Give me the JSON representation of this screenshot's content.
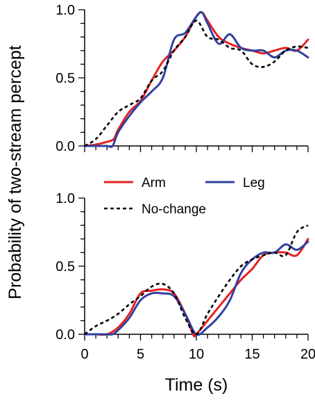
{
  "chart_data": {
    "type": "line",
    "ylabel": "Probability of two-stream percept",
    "xlabel": "Time (s)",
    "legend": {
      "placement": "between-panels",
      "entries": [
        {
          "name": "Arm",
          "color": "#e62020",
          "style": "solid"
        },
        {
          "name": "Leg",
          "color": "#3040a0",
          "style": "solid"
        },
        {
          "name": "No-change",
          "color": "#000000",
          "style": "dashed"
        }
      ]
    },
    "xlim": [
      0,
      20
    ],
    "x_ticks": [
      "0",
      "5",
      "10",
      "15",
      "20"
    ],
    "panels": [
      {
        "id": "top",
        "ylim": [
          0,
          1
        ],
        "y_ticks": [
          "0.0",
          "0.5",
          "1.0"
        ],
        "series": [
          {
            "name": "Arm",
            "color": "#e62020",
            "dashed": false,
            "points": [
              [
                0,
                0
              ],
              [
                1,
                0.01
              ],
              [
                2,
                0.03
              ],
              [
                2.6,
                0.05
              ],
              [
                3,
                0.12
              ],
              [
                4,
                0.25
              ],
              [
                5,
                0.33
              ],
              [
                6,
                0.48
              ],
              [
                7,
                0.62
              ],
              [
                8,
                0.7
              ],
              [
                9,
                0.8
              ],
              [
                10,
                0.95
              ],
              [
                10.5,
                0.98
              ],
              [
                11,
                0.92
              ],
              [
                12,
                0.8
              ],
              [
                13,
                0.75
              ],
              [
                14,
                0.72
              ],
              [
                15,
                0.7
              ],
              [
                16,
                0.68
              ],
              [
                17,
                0.7
              ],
              [
                18,
                0.72
              ],
              [
                19,
                0.7
              ],
              [
                20,
                0.78
              ]
            ]
          },
          {
            "name": "Leg",
            "color": "#3040a0",
            "dashed": false,
            "points": [
              [
                0,
                0
              ],
              [
                1,
                0
              ],
              [
                2,
                0
              ],
              [
                2.5,
                0
              ],
              [
                3,
                0.1
              ],
              [
                4,
                0.22
              ],
              [
                5,
                0.32
              ],
              [
                6,
                0.4
              ],
              [
                7,
                0.5
              ],
              [
                8,
                0.78
              ],
              [
                9,
                0.83
              ],
              [
                10,
                0.95
              ],
              [
                10.5,
                0.98
              ],
              [
                11,
                0.9
              ],
              [
                12,
                0.75
              ],
              [
                13,
                0.82
              ],
              [
                14,
                0.72
              ],
              [
                15,
                0.7
              ],
              [
                16,
                0.7
              ],
              [
                17,
                0.65
              ],
              [
                18,
                0.7
              ],
              [
                19,
                0.7
              ],
              [
                20,
                0.65
              ]
            ]
          },
          {
            "name": "No-change",
            "color": "#000000",
            "dashed": true,
            "points": [
              [
                0,
                0
              ],
              [
                1,
                0.05
              ],
              [
                2,
                0.15
              ],
              [
                3,
                0.25
              ],
              [
                4,
                0.3
              ],
              [
                5,
                0.35
              ],
              [
                6,
                0.48
              ],
              [
                7,
                0.55
              ],
              [
                8,
                0.7
              ],
              [
                9,
                0.8
              ],
              [
                10,
                0.92
              ],
              [
                11,
                0.8
              ],
              [
                12,
                0.78
              ],
              [
                13,
                0.72
              ],
              [
                14,
                0.7
              ],
              [
                15,
                0.6
              ],
              [
                16,
                0.58
              ],
              [
                17,
                0.62
              ],
              [
                18,
                0.7
              ],
              [
                19,
                0.73
              ],
              [
                20,
                0.72
              ]
            ]
          }
        ]
      },
      {
        "id": "bottom",
        "ylim": [
          0,
          1
        ],
        "y_ticks": [
          "0.0",
          "0.5",
          "1.0"
        ],
        "series": [
          {
            "name": "Arm",
            "color": "#e62020",
            "dashed": false,
            "points": [
              [
                0,
                0
              ],
              [
                1,
                0
              ],
              [
                2,
                0
              ],
              [
                3,
                0.05
              ],
              [
                4,
                0.15
              ],
              [
                5,
                0.3
              ],
              [
                6,
                0.32
              ],
              [
                7,
                0.33
              ],
              [
                8,
                0.3
              ],
              [
                9,
                0.15
              ],
              [
                9.7,
                0
              ],
              [
                10,
                0
              ],
              [
                11,
                0.1
              ],
              [
                12,
                0.2
              ],
              [
                13,
                0.3
              ],
              [
                14,
                0.4
              ],
              [
                15,
                0.48
              ],
              [
                16,
                0.58
              ],
              [
                17,
                0.6
              ],
              [
                18,
                0.6
              ],
              [
                19,
                0.58
              ],
              [
                20,
                0.7
              ]
            ]
          },
          {
            "name": "Leg",
            "color": "#3040a0",
            "dashed": false,
            "points": [
              [
                0,
                0
              ],
              [
                1,
                0
              ],
              [
                2,
                0
              ],
              [
                2.5,
                0
              ],
              [
                3,
                0.03
              ],
              [
                4,
                0.12
              ],
              [
                5,
                0.25
              ],
              [
                6,
                0.3
              ],
              [
                7,
                0.3
              ],
              [
                8,
                0.28
              ],
              [
                9,
                0.15
              ],
              [
                10,
                0
              ],
              [
                11,
                0.05
              ],
              [
                12,
                0.13
              ],
              [
                13,
                0.25
              ],
              [
                14,
                0.45
              ],
              [
                15,
                0.55
              ],
              [
                16,
                0.6
              ],
              [
                17,
                0.6
              ],
              [
                18,
                0.66
              ],
              [
                19,
                0.62
              ],
              [
                20,
                0.68
              ]
            ]
          },
          {
            "name": "No-change",
            "color": "#000000",
            "dashed": true,
            "points": [
              [
                0,
                0
              ],
              [
                1,
                0.06
              ],
              [
                2,
                0.1
              ],
              [
                3,
                0.15
              ],
              [
                4,
                0.22
              ],
              [
                5,
                0.28
              ],
              [
                6,
                0.35
              ],
              [
                7,
                0.37
              ],
              [
                8,
                0.3
              ],
              [
                9,
                0.12
              ],
              [
                10,
                0
              ],
              [
                11,
                0.15
              ],
              [
                12,
                0.28
              ],
              [
                13,
                0.4
              ],
              [
                14,
                0.5
              ],
              [
                15,
                0.55
              ],
              [
                16,
                0.58
              ],
              [
                17,
                0.6
              ],
              [
                18,
                0.58
              ],
              [
                19,
                0.75
              ],
              [
                20,
                0.8
              ]
            ]
          }
        ]
      }
    ]
  }
}
